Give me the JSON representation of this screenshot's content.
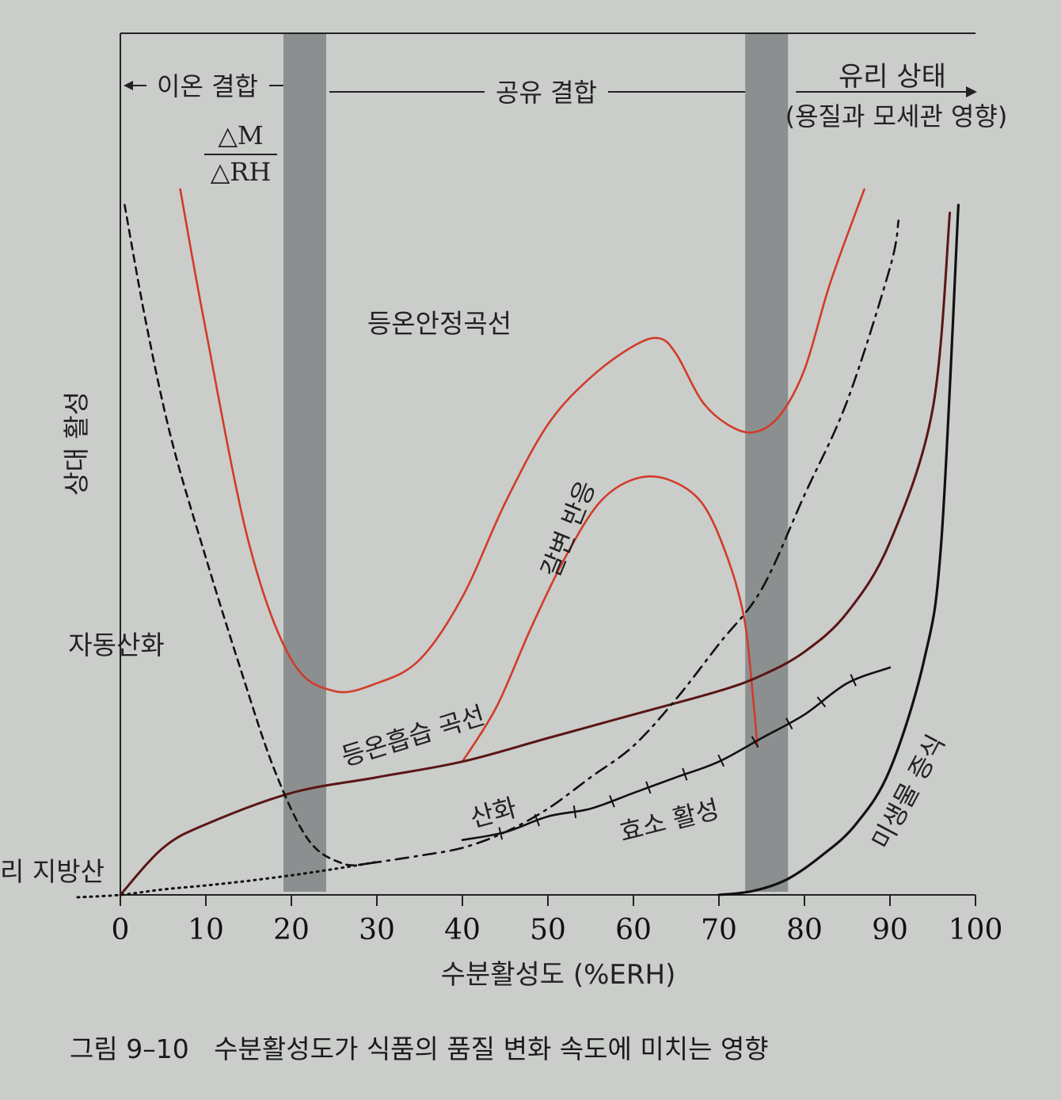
{
  "caption": "그림 9–10   수분활성도가 식품의 품질 변화 속도에 미치는 영향",
  "chart_data": {
    "type": "line",
    "title": "",
    "xlabel": "수분활성도 (%ERH)",
    "ylabel": "상대 활성",
    "xlim": [
      0,
      100
    ],
    "ylim": [
      0,
      100
    ],
    "x_ticks": [
      0,
      10,
      20,
      30,
      40,
      50,
      60,
      70,
      80,
      90,
      100
    ],
    "grid": false,
    "regions": [
      {
        "label": "이온 결합",
        "from": 0,
        "to": 20
      },
      {
        "label": "공유 결합",
        "from": 20,
        "to": 80
      },
      {
        "label": "유리 상태",
        "sublabel": "(용질과 모세관 영향)",
        "from": 80,
        "to": 100
      }
    ],
    "shaded_bands": [
      [
        20,
        25
      ],
      [
        74,
        79
      ]
    ],
    "annotations": {
      "dm_numerator": "△M",
      "dm_denominator": "△RH",
      "fatty_acid": "리 지방산"
    },
    "series": [
      {
        "name": "등온안정곡선",
        "color": "#d23b2a",
        "style": "solid",
        "x": [
          7,
          10,
          15,
          20,
          25,
          30,
          35,
          40,
          45,
          50,
          55,
          60,
          63,
          65,
          68,
          71,
          74,
          77,
          80,
          83,
          87
        ],
        "y": [
          90,
          72,
          45,
          30,
          26,
          27,
          30,
          38,
          50,
          60,
          66,
          70,
          71,
          69,
          63,
          60,
          59,
          61,
          67,
          78,
          90
        ]
      },
      {
        "name": "갈변 반응",
        "color": "#d23b2a",
        "style": "solid",
        "x": [
          40,
          44,
          48,
          52,
          56,
          60,
          64,
          68,
          71,
          73,
          74,
          74.5
        ],
        "y": [
          17,
          24,
          34,
          43,
          50,
          53,
          53,
          50,
          43,
          35,
          25,
          19
        ]
      },
      {
        "name": "등온흡습 곡선",
        "color": "#5a1515",
        "style": "solid",
        "x": [
          0,
          5,
          10,
          20,
          30,
          40,
          50,
          60,
          70,
          75,
          80,
          85,
          90,
          95,
          97
        ],
        "y": [
          0,
          6,
          9,
          13,
          15,
          17,
          20,
          23,
          26,
          28,
          31,
          36,
          45,
          62,
          87
        ]
      },
      {
        "name": "자동산화",
        "color": "#111111",
        "style": "dashed",
        "x": [
          0.5,
          3,
          6,
          10,
          14,
          18,
          22,
          26,
          29
        ],
        "y": [
          88,
          73,
          58,
          43,
          29,
          16,
          7,
          4,
          4
        ]
      },
      {
        "name": "산화",
        "color": "#111111",
        "style": "dashdot",
        "x": [
          29,
          35,
          40,
          45,
          50,
          55,
          60,
          65,
          70,
          75,
          80,
          85,
          90,
          91
        ],
        "y": [
          4,
          5,
          6,
          8,
          11,
          15,
          19,
          25,
          32,
          39,
          51,
          63,
          80,
          86
        ]
      },
      {
        "name": "효소 활성",
        "color": "#111111",
        "style": "ticked",
        "x": [
          40,
          45,
          50,
          55,
          60,
          65,
          70,
          75,
          80,
          85,
          90
        ],
        "y": [
          7,
          8,
          10,
          11,
          13,
          15,
          17,
          20,
          23,
          27,
          29
        ]
      },
      {
        "name": "미생물 증식",
        "color": "#111111",
        "style": "solid",
        "x": [
          70,
          74,
          78,
          82,
          86,
          90,
          94,
          96,
          98
        ],
        "y": [
          0,
          0.5,
          2,
          5,
          9,
          16,
          30,
          45,
          88
        ]
      },
      {
        "name": "",
        "color": "#111111",
        "style": "dotted",
        "x": [
          -5,
          0,
          5,
          10,
          15,
          20,
          25,
          30
        ],
        "y": [
          -0.3,
          0,
          0.7,
          1.2,
          1.8,
          2.5,
          3.3,
          4.2
        ]
      }
    ]
  }
}
